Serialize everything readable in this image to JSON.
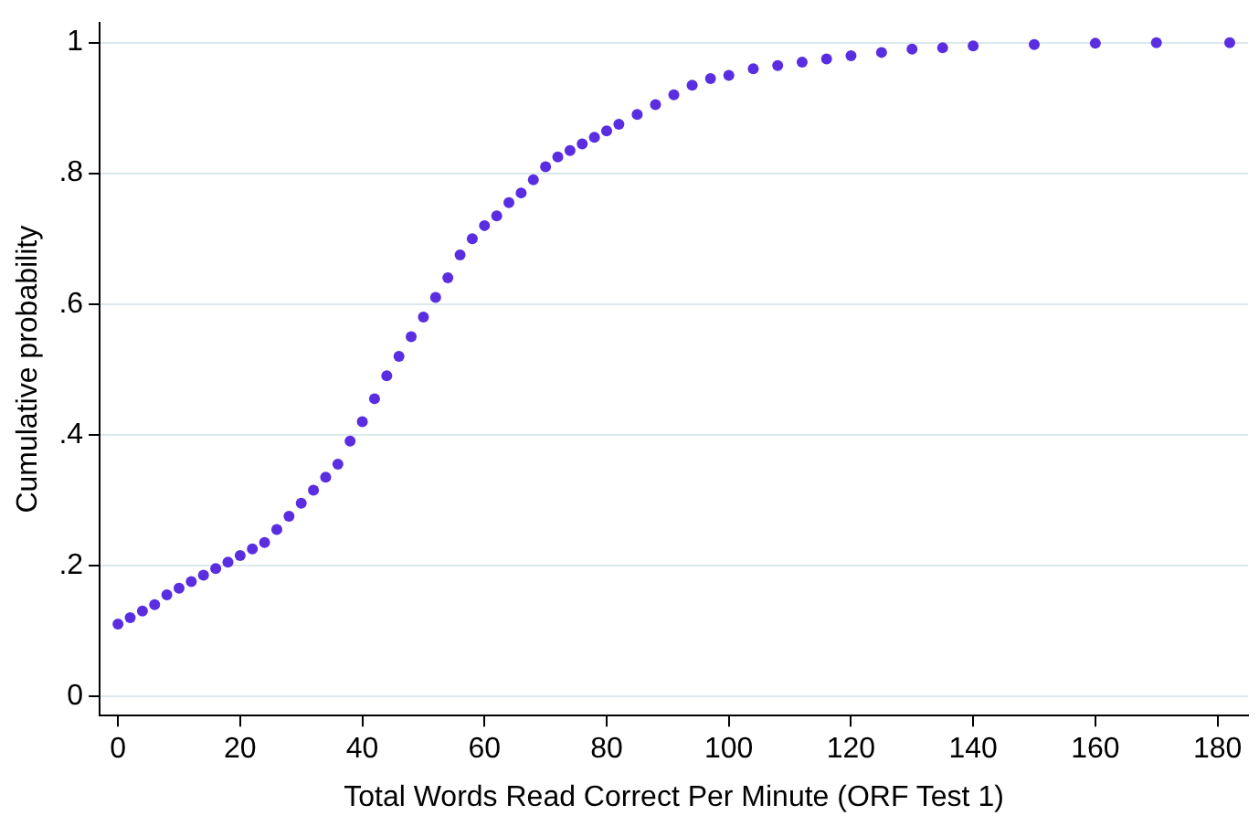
{
  "chart_data": {
    "type": "scatter",
    "xlabel": "Total Words Read Correct Per Minute (ORF Test 1)",
    "ylabel": "Cumulative probability",
    "x": [
      0,
      2,
      4,
      6,
      8,
      10,
      12,
      14,
      16,
      18,
      20,
      22,
      24,
      26,
      28,
      30,
      32,
      34,
      36,
      38,
      40,
      42,
      44,
      46,
      48,
      50,
      52,
      54,
      56,
      58,
      60,
      62,
      64,
      66,
      68,
      70,
      72,
      74,
      76,
      78,
      80,
      82,
      85,
      88,
      91,
      94,
      97,
      100,
      104,
      108,
      112,
      116,
      120,
      125,
      130,
      135,
      140,
      150,
      160,
      170,
      182
    ],
    "series": [
      {
        "color": "#5a2ee0",
        "values": [
          0.11,
          0.12,
          0.13,
          0.14,
          0.155,
          0.165,
          0.175,
          0.185,
          0.195,
          0.205,
          0.215,
          0.225,
          0.235,
          0.255,
          0.275,
          0.295,
          0.315,
          0.335,
          0.355,
          0.39,
          0.42,
          0.455,
          0.49,
          0.52,
          0.55,
          0.58,
          0.61,
          0.64,
          0.675,
          0.7,
          0.72,
          0.735,
          0.755,
          0.77,
          0.79,
          0.81,
          0.825,
          0.835,
          0.845,
          0.855,
          0.865,
          0.875,
          0.89,
          0.905,
          0.92,
          0.935,
          0.945,
          0.95,
          0.96,
          0.965,
          0.97,
          0.975,
          0.98,
          0.985,
          0.99,
          0.992,
          0.995,
          0.997,
          0.999,
          1,
          1
        ]
      }
    ],
    "xlim": [
      -3,
      185
    ],
    "xticks": [
      0,
      20,
      40,
      60,
      80,
      100,
      120,
      140,
      160,
      180
    ],
    "ylim": [
      -0.03,
      1.03
    ],
    "yticks": [
      0,
      {
        "value": 0.2,
        "label": ".2"
      },
      {
        "value": 0.4,
        "label": ".4"
      },
      {
        "value": 0.6,
        "label": ".6"
      },
      {
        "value": 0.8,
        "label": ".8"
      },
      1
    ],
    "grid": "y",
    "marker": "circle",
    "legend": false
  }
}
